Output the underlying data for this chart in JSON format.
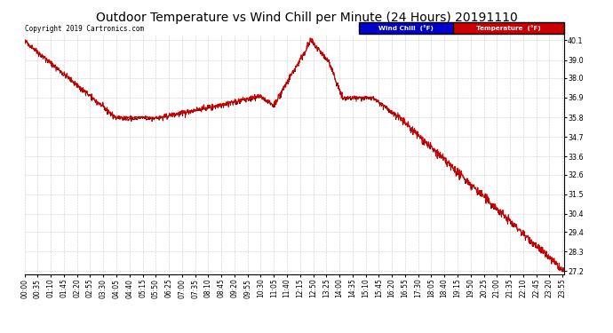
{
  "title": "Outdoor Temperature vs Wind Chill per Minute (24 Hours) 20191110",
  "copyright": "Copyright 2019 Cartronics.com",
  "yticks": [
    27.2,
    28.3,
    29.4,
    30.4,
    31.5,
    32.6,
    33.6,
    34.7,
    35.8,
    36.9,
    38.0,
    39.0,
    40.1
  ],
  "ymin": 27.0,
  "ymax": 40.4,
  "temp_color": "#cc0000",
  "wind_chill_color": "#880000",
  "legend_wind_bg": "#0000cc",
  "legend_temp_bg": "#cc0000",
  "bg_color": "#ffffff",
  "grid_color": "#cccccc",
  "title_fontsize": 10,
  "tick_fontsize": 5.8,
  "copyright_fontsize": 5.5
}
